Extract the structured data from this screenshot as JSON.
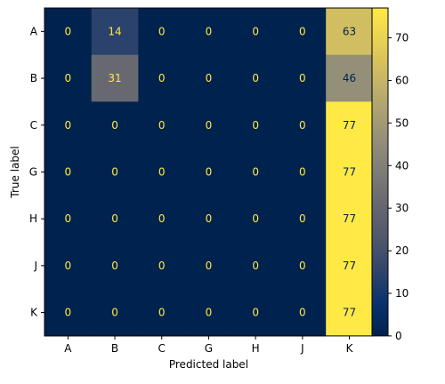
{
  "chart_data": {
    "type": "heatmap",
    "title": "",
    "xlabel": "Predicted label",
    "ylabel": "True label",
    "x_categories": [
      "A",
      "B",
      "C",
      "G",
      "H",
      "J",
      "K"
    ],
    "y_categories": [
      "A",
      "B",
      "C",
      "G",
      "H",
      "J",
      "K"
    ],
    "matrix": [
      [
        0,
        14,
        0,
        0,
        0,
        0,
        63
      ],
      [
        0,
        31,
        0,
        0,
        0,
        0,
        46
      ],
      [
        0,
        0,
        0,
        0,
        0,
        0,
        77
      ],
      [
        0,
        0,
        0,
        0,
        0,
        0,
        77
      ],
      [
        0,
        0,
        0,
        0,
        0,
        0,
        77
      ],
      [
        0,
        0,
        0,
        0,
        0,
        0,
        77
      ],
      [
        0,
        0,
        0,
        0,
        0,
        0,
        77
      ]
    ],
    "colormap": "cividis",
    "vmin": 0,
    "vmax": 77,
    "colorbar_ticks": [
      0,
      10,
      20,
      30,
      40,
      50,
      60,
      70
    ],
    "grid": false,
    "annotation_colors": {
      "on_dark": "#ffe945",
      "on_light": "#00224e"
    }
  }
}
